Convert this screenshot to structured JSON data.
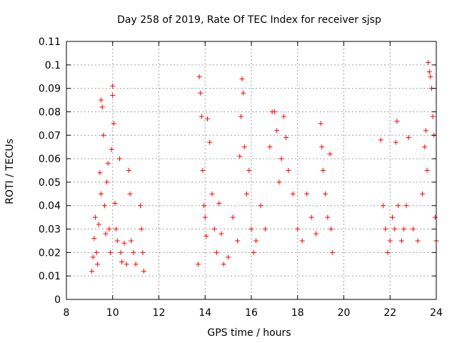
{
  "chart_data": {
    "type": "scatter",
    "title": "Day 258 of 2019, Rate Of TEC Index for receiver sjsp",
    "xlabel": "GPS time / hours",
    "ylabel": "ROTI / TECUs",
    "xlim": [
      8,
      24
    ],
    "ylim": [
      0,
      0.11
    ],
    "xticks": [
      8,
      10,
      12,
      14,
      16,
      18,
      20,
      22,
      24
    ],
    "xtick_labels": [
      "8",
      "10",
      "12",
      "14",
      "16",
      "18",
      "20",
      "22",
      "24"
    ],
    "yticks": [
      0,
      0.01,
      0.02,
      0.03,
      0.04,
      0.05,
      0.06,
      0.07,
      0.08,
      0.09,
      0.1,
      0.11
    ],
    "ytick_labels": [
      "0",
      "0.01",
      "0.02",
      "0.03",
      "0.04",
      "0.05",
      "0.06",
      "0.07",
      "0.08",
      "0.09",
      "0.1",
      "0.11"
    ],
    "grid": true,
    "marker": "+",
    "color": "#ff0000",
    "series": [
      {
        "name": "ROTI",
        "points": [
          [
            9.1,
            0.012
          ],
          [
            9.15,
            0.018
          ],
          [
            9.2,
            0.026
          ],
          [
            9.25,
            0.035
          ],
          [
            9.3,
            0.02
          ],
          [
            9.35,
            0.015
          ],
          [
            9.4,
            0.032
          ],
          [
            9.45,
            0.054
          ],
          [
            9.5,
            0.045
          ],
          [
            9.5,
            0.085
          ],
          [
            9.55,
            0.082
          ],
          [
            9.6,
            0.07
          ],
          [
            9.65,
            0.04
          ],
          [
            9.7,
            0.028
          ],
          [
            9.75,
            0.05
          ],
          [
            9.8,
            0.058
          ],
          [
            9.85,
            0.03
          ],
          [
            9.9,
            0.02
          ],
          [
            9.95,
            0.064
          ],
          [
            10.0,
            0.091
          ],
          [
            10.0,
            0.087
          ],
          [
            10.05,
            0.075
          ],
          [
            10.1,
            0.041
          ],
          [
            10.15,
            0.03
          ],
          [
            10.2,
            0.025
          ],
          [
            10.3,
            0.06
          ],
          [
            10.35,
            0.02
          ],
          [
            10.4,
            0.016
          ],
          [
            10.5,
            0.024
          ],
          [
            10.6,
            0.015
          ],
          [
            10.7,
            0.055
          ],
          [
            10.75,
            0.045
          ],
          [
            10.8,
            0.025
          ],
          [
            10.9,
            0.02
          ],
          [
            11.0,
            0.015
          ],
          [
            11.2,
            0.04
          ],
          [
            11.25,
            0.03
          ],
          [
            11.3,
            0.02
          ],
          [
            11.35,
            0.012
          ],
          [
            13.7,
            0.015
          ],
          [
            13.75,
            0.095
          ],
          [
            13.8,
            0.088
          ],
          [
            13.85,
            0.078
          ],
          [
            13.9,
            0.055
          ],
          [
            13.95,
            0.04
          ],
          [
            14.0,
            0.035
          ],
          [
            14.05,
            0.027
          ],
          [
            14.1,
            0.077
          ],
          [
            14.2,
            0.067
          ],
          [
            14.3,
            0.045
          ],
          [
            14.4,
            0.03
          ],
          [
            14.5,
            0.02
          ],
          [
            14.6,
            0.041
          ],
          [
            14.7,
            0.028
          ],
          [
            14.8,
            0.015
          ],
          [
            15.0,
            0.018
          ],
          [
            15.2,
            0.035
          ],
          [
            15.4,
            0.025
          ],
          [
            15.5,
            0.061
          ],
          [
            15.55,
            0.078
          ],
          [
            15.6,
            0.094
          ],
          [
            15.65,
            0.088
          ],
          [
            15.7,
            0.065
          ],
          [
            15.8,
            0.045
          ],
          [
            15.9,
            0.055
          ],
          [
            16.0,
            0.03
          ],
          [
            16.1,
            0.02
          ],
          [
            16.2,
            0.025
          ],
          [
            16.4,
            0.04
          ],
          [
            16.6,
            0.03
          ],
          [
            16.8,
            0.065
          ],
          [
            16.9,
            0.08
          ],
          [
            17.0,
            0.08
          ],
          [
            17.1,
            0.072
          ],
          [
            17.2,
            0.05
          ],
          [
            17.3,
            0.06
          ],
          [
            17.4,
            0.078
          ],
          [
            17.5,
            0.069
          ],
          [
            17.6,
            0.055
          ],
          [
            17.8,
            0.045
          ],
          [
            18.0,
            0.03
          ],
          [
            18.2,
            0.025
          ],
          [
            18.4,
            0.045
          ],
          [
            18.6,
            0.035
          ],
          [
            18.8,
            0.028
          ],
          [
            19.0,
            0.075
          ],
          [
            19.05,
            0.065
          ],
          [
            19.1,
            0.055
          ],
          [
            19.2,
            0.045
          ],
          [
            19.3,
            0.035
          ],
          [
            19.4,
            0.062
          ],
          [
            19.45,
            0.03
          ],
          [
            19.5,
            0.02
          ],
          [
            21.6,
            0.068
          ],
          [
            21.7,
            0.04
          ],
          [
            21.8,
            0.03
          ],
          [
            21.9,
            0.02
          ],
          [
            22.0,
            0.025
          ],
          [
            22.1,
            0.035
          ],
          [
            22.2,
            0.03
          ],
          [
            22.25,
            0.067
          ],
          [
            22.3,
            0.076
          ],
          [
            22.35,
            0.04
          ],
          [
            22.5,
            0.025
          ],
          [
            22.6,
            0.03
          ],
          [
            22.7,
            0.04
          ],
          [
            22.8,
            0.069
          ],
          [
            23.0,
            0.03
          ],
          [
            23.2,
            0.025
          ],
          [
            23.4,
            0.045
          ],
          [
            23.5,
            0.065
          ],
          [
            23.55,
            0.072
          ],
          [
            23.6,
            0.055
          ],
          [
            23.65,
            0.101
          ],
          [
            23.7,
            0.097
          ],
          [
            23.75,
            0.095
          ],
          [
            23.8,
            0.09
          ],
          [
            23.85,
            0.078
          ],
          [
            23.9,
            0.07
          ],
          [
            23.95,
            0.035
          ],
          [
            24.0,
            0.025
          ]
        ]
      }
    ]
  }
}
